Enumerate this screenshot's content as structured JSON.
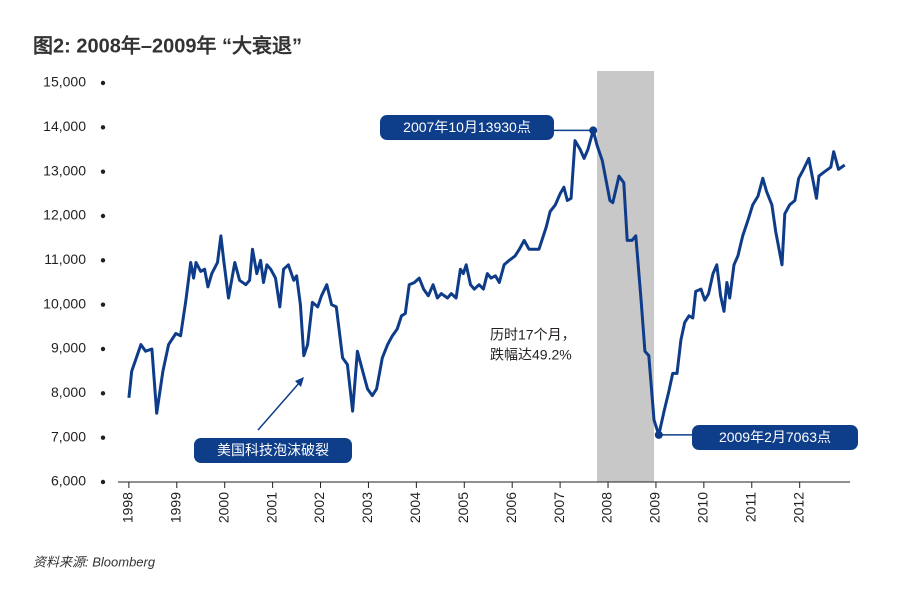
{
  "chart_data": {
    "type": "line",
    "title": "图2: 2008年–2009年 “大衰退”",
    "source": "资料来源: Bloomberg",
    "x": [
      1998.0,
      1998.06,
      1998.25,
      1998.35,
      1998.48,
      1998.58,
      1998.71,
      1998.83,
      1998.98,
      1999.08,
      1999.19,
      1999.29,
      1999.35,
      1999.4,
      1999.5,
      1999.58,
      1999.65,
      1999.73,
      1999.85,
      1999.92,
      1999.98,
      2000.08,
      2000.21,
      2000.31,
      2000.44,
      2000.52,
      2000.58,
      2000.67,
      2000.75,
      2000.81,
      2000.88,
      2000.96,
      2001.06,
      2001.15,
      2001.23,
      2001.33,
      2001.44,
      2001.5,
      2001.58,
      2001.65,
      2001.73,
      2001.83,
      2001.94,
      2002.02,
      2002.13,
      2002.23,
      2002.33,
      2002.46,
      2002.56,
      2002.67,
      2002.77,
      2002.88,
      2002.98,
      2003.08,
      2003.17,
      2003.29,
      2003.4,
      2003.5,
      2003.6,
      2003.69,
      2003.77,
      2003.85,
      2003.96,
      2004.06,
      2004.15,
      2004.25,
      2004.35,
      2004.44,
      2004.52,
      2004.65,
      2004.73,
      2004.83,
      2004.92,
      2004.98,
      2005.04,
      2005.13,
      2005.21,
      2005.31,
      2005.4,
      2005.48,
      2005.56,
      2005.65,
      2005.73,
      2005.83,
      2005.94,
      2006.06,
      2006.15,
      2006.25,
      2006.35,
      2006.56,
      2006.71,
      2006.79,
      2006.9,
      2007.0,
      2007.08,
      2007.15,
      2007.23,
      2007.31,
      2007.42,
      2007.5,
      2007.58,
      2007.69,
      2007.77,
      2007.88,
      2007.96,
      2008.04,
      2008.1,
      2008.23,
      2008.33,
      2008.4,
      2008.5,
      2008.58,
      2008.69,
      2008.77,
      2008.85,
      2008.96,
      2009.06,
      2009.17,
      2009.27,
      2009.35,
      2009.44,
      2009.52,
      2009.6,
      2009.69,
      2009.77,
      2009.83,
      2009.94,
      2010.02,
      2010.1,
      2010.19,
      2010.27,
      2010.35,
      2010.42,
      2010.48,
      2010.54,
      2010.63,
      2010.71,
      2010.81,
      2010.92,
      2011.02,
      2011.13,
      2011.23,
      2011.31,
      2011.42,
      2011.5,
      2011.63,
      2011.69,
      2011.79,
      2011.9,
      2011.98,
      2012.08,
      2012.19,
      2012.27,
      2012.35,
      2012.4,
      2012.52,
      2012.65,
      2012.71,
      2012.81,
      2012.94
    ],
    "series": [
      {
        "color": "#0f3c89",
        "values": [
          7900,
          8500,
          9100,
          8950,
          9000,
          7550,
          8500,
          9100,
          9350,
          9300,
          10100,
          10950,
          10600,
          10950,
          10750,
          10800,
          10400,
          10700,
          10950,
          11550,
          11000,
          10150,
          10950,
          10550,
          10450,
          10550,
          11250,
          10700,
          11000,
          10500,
          10900,
          10800,
          10600,
          9950,
          10800,
          10900,
          10550,
          10650,
          10000,
          8850,
          9100,
          10050,
          9950,
          10200,
          10450,
          10000,
          9950,
          8800,
          8650,
          7600,
          8950,
          8500,
          8100,
          7950,
          8100,
          8800,
          9100,
          9300,
          9450,
          9750,
          9800,
          10450,
          10500,
          10600,
          10350,
          10200,
          10450,
          10150,
          10250,
          10150,
          10250,
          10150,
          10800,
          10700,
          10900,
          10450,
          10350,
          10450,
          10350,
          10700,
          10600,
          10650,
          10500,
          10900,
          11000,
          11100,
          11250,
          11450,
          11250,
          11250,
          11750,
          12100,
          12250,
          12500,
          12650,
          12350,
          12400,
          13700,
          13500,
          13300,
          13500,
          13930,
          13600,
          13250,
          12800,
          12350,
          12300,
          12900,
          12750,
          11450,
          11450,
          11550,
          10100,
          8950,
          8850,
          7400,
          7063,
          7600,
          8050,
          8450,
          8450,
          9200,
          9600,
          9750,
          9700,
          10300,
          10350,
          10100,
          10250,
          10700,
          10900,
          10200,
          9850,
          10500,
          10150,
          10900,
          11100,
          11550,
          11900,
          12250,
          12450,
          12850,
          12550,
          12250,
          11650,
          10900,
          12050,
          12250,
          12350,
          12850,
          13050,
          13300,
          12850,
          12400,
          12900,
          13000,
          13100,
          13450,
          13050,
          13150
        ]
      }
    ],
    "xlim": [
      1997.46,
      2013.05
    ],
    "xticks": [
      1998,
      1999,
      2000,
      2001,
      2002,
      2003,
      2004,
      2005,
      2006,
      2007,
      2008,
      2009,
      2010,
      2011,
      2012
    ],
    "ylim": [
      6000,
      15000
    ],
    "yticks": [
      {
        "value": 6000,
        "label": "6,000"
      },
      {
        "value": 7000,
        "label": "7,000"
      },
      {
        "value": 8000,
        "label": "8,000"
      },
      {
        "value": 9000,
        "label": "9,000"
      },
      {
        "value": 10000,
        "label": "10,000"
      },
      {
        "value": 11000,
        "label": "11,000"
      },
      {
        "value": 12000,
        "label": "12,000"
      },
      {
        "value": 13000,
        "label": "13,000"
      },
      {
        "value": 14000,
        "label": "14,000"
      },
      {
        "value": 15000,
        "label": "15,000"
      }
    ],
    "highlight_x": [
      2007.77,
      2008.96
    ],
    "annotations": {
      "peak": "2007年10月13930点",
      "trough": "2009年2月7063点",
      "bubble": "美国科技泡沫破裂",
      "note": [
        "历时17个月，",
        "跌幅达49.2%"
      ]
    }
  }
}
